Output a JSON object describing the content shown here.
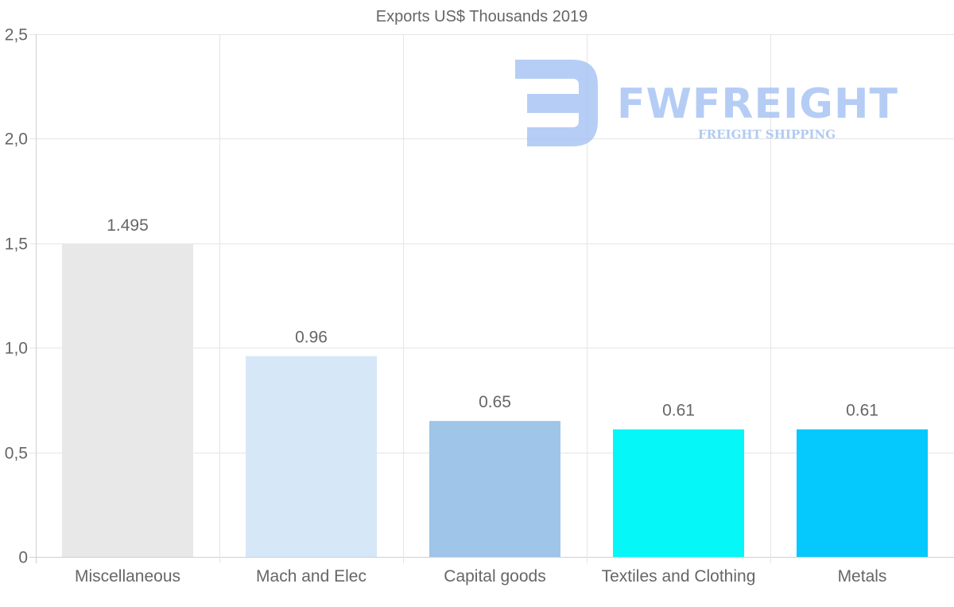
{
  "chart_data": {
    "type": "bar",
    "title": "Exports US$ Thousands 2019",
    "categories": [
      "Miscellaneous",
      "Mach and Elec",
      "Capital goods",
      "Textiles and Clothing",
      "Metals"
    ],
    "values": [
      1.495,
      0.96,
      0.65,
      0.61,
      0.61
    ],
    "data_labels": [
      "1.495",
      "0.96",
      "0.65",
      "0.61",
      "0.61"
    ],
    "bar_colors": [
      "#e8e8e8",
      "#d6e7f8",
      "#9fc5e8",
      "#05f7f7",
      "#05c8fc"
    ],
    "ylim": [
      0,
      2.5
    ],
    "yticks": [
      0,
      0.5,
      1.0,
      1.5,
      2.0,
      2.5
    ],
    "ytick_labels": [
      "0",
      "0,5",
      "1,0",
      "1,5",
      "2,0",
      "2,5"
    ],
    "xlabel": "",
    "ylabel": "",
    "grid": true
  },
  "watermark": {
    "brand": "FWFREIGHT",
    "tagline": "FREIGHT SHIPPING",
    "color": "#9dbdf2"
  }
}
